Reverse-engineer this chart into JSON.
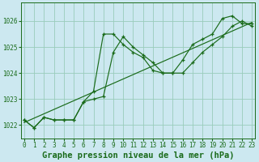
{
  "title": "Graphe pression niveau de la mer (hPa)",
  "background_color": "#cce8f0",
  "grid_color": "#99ccbb",
  "line_color": "#1a6b1a",
  "hours": [
    0,
    1,
    2,
    3,
    4,
    5,
    6,
    7,
    8,
    9,
    10,
    11,
    12,
    13,
    14,
    15,
    16,
    17,
    18,
    19,
    20,
    21,
    22,
    23
  ],
  "series1": [
    1022.2,
    1021.9,
    1022.3,
    1022.2,
    1022.2,
    1022.2,
    1022.9,
    1023.3,
    1025.5,
    1025.5,
    1025.1,
    1024.8,
    1024.6,
    1024.1,
    1024.0,
    1024.0,
    1024.5,
    1025.1,
    1025.3,
    1025.5,
    1026.1,
    1026.2,
    1025.9,
    1025.9
  ],
  "series2": [
    1022.2,
    1021.9,
    1022.3,
    1022.2,
    1022.2,
    1022.2,
    1022.9,
    1023.0,
    1023.1,
    1024.8,
    1025.4,
    1025.0,
    1024.7,
    1024.4,
    1024.0,
    1024.0,
    1024.0,
    1024.4,
    1024.8,
    1025.1,
    1025.4,
    1025.8,
    1026.0,
    1025.8
  ],
  "series3_x": [
    0,
    23
  ],
  "series3_y": [
    1022.1,
    1025.95
  ],
  "ylim": [
    1021.5,
    1026.7
  ],
  "yticks": [
    1022,
    1023,
    1024,
    1025,
    1026
  ],
  "xlim": [
    -0.3,
    23.3
  ],
  "xticks": [
    0,
    1,
    2,
    3,
    4,
    5,
    6,
    7,
    8,
    9,
    10,
    11,
    12,
    13,
    14,
    15,
    16,
    17,
    18,
    19,
    20,
    21,
    22,
    23
  ],
  "title_fontsize": 7.5,
  "tick_fontsize": 5.5,
  "marker_size": 3.5,
  "lw": 0.85
}
